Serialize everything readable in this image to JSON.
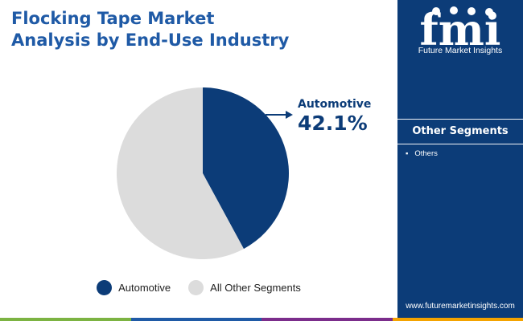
{
  "header": {
    "title_line1": "Flocking Tape Market",
    "title_line2": "Analysis by End-Use Industry"
  },
  "chart_data": {
    "type": "pie",
    "title": "Flocking Tape Market Analysis by End-Use Industry",
    "slices": [
      {
        "label": "Automotive",
        "value": 42.1,
        "color": "#0c3c78"
      },
      {
        "label": "All Other Segments",
        "value": 57.9,
        "color": "#dcdcdc"
      }
    ],
    "callout": {
      "label": "Automotive",
      "value_label": "42.1%"
    },
    "legend": {
      "position": "bottom"
    }
  },
  "legend": {
    "items": [
      {
        "label": "Automotive"
      },
      {
        "label": "All Other Segments"
      }
    ]
  },
  "sidebar": {
    "logo_text": "fmi",
    "logo_caption": "Future Market Insights",
    "heading": "Other Segments",
    "items": [
      {
        "label": "Others"
      }
    ],
    "url": "www.futuremarketinsights.com"
  },
  "colors": {
    "title": "#1f5aa6",
    "panel": "#0c3c78",
    "bottom_bar": [
      "#7cb342",
      "#1f5aa6",
      "#7b2d8b",
      "#f4a300"
    ]
  }
}
